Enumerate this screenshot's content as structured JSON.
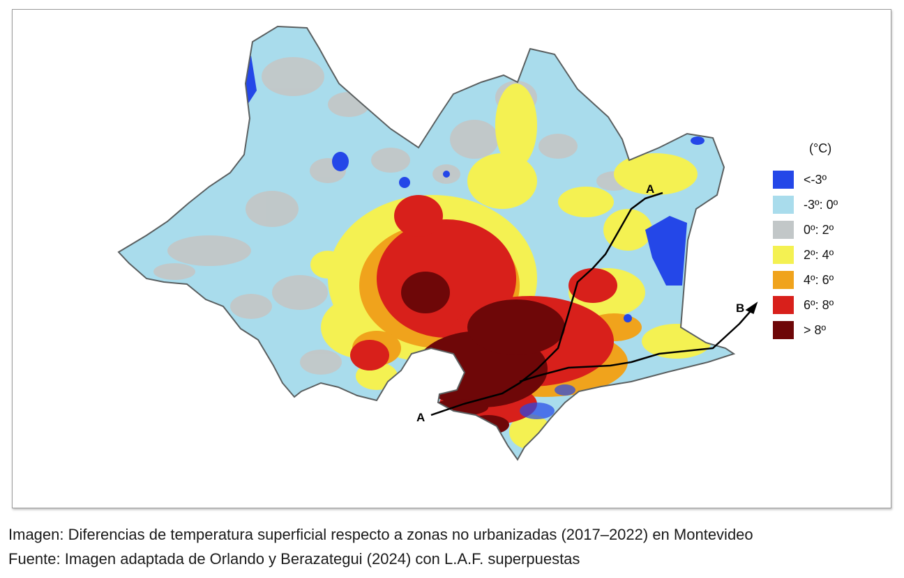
{
  "colors": {
    "below_minus_3": "#2447e8",
    "minus_3_to_0": "#a9dcec",
    "0_to_2": "#c2c7c8",
    "2_to_4": "#f4f152",
    "4_to_6": "#f0a31c",
    "6_to_8": "#d8201b",
    "above_8": "#6e0708",
    "outline": "#5a5f60",
    "line": "#000000"
  },
  "legend": {
    "unit": "(°C)",
    "items": [
      {
        "label": "<-3º",
        "color": "#2447e8"
      },
      {
        "label": "-3º: 0º",
        "color": "#a9dcec"
      },
      {
        "label": "0º: 2º",
        "color": "#c2c7c8"
      },
      {
        "label": "2º: 4º",
        "color": "#f4f152"
      },
      {
        "label": "4º: 6º",
        "color": "#f0a31c"
      },
      {
        "label": "6º: 8º",
        "color": "#d8201b"
      },
      {
        "label": "> 8º",
        "color": "#6e0708"
      }
    ]
  },
  "map": {
    "line_labels": {
      "a_north": "A",
      "a_south": "A",
      "b_east": "B"
    }
  },
  "caption": {
    "line1": "Imagen: Diferencias de temperatura superficial respecto a zonas no urbanizadas (2017–2022) en Montevideo",
    "line2": "Fuente: Imagen adaptada de Orlando y Berazategui (2024) con L.A.F. superpuestas"
  }
}
